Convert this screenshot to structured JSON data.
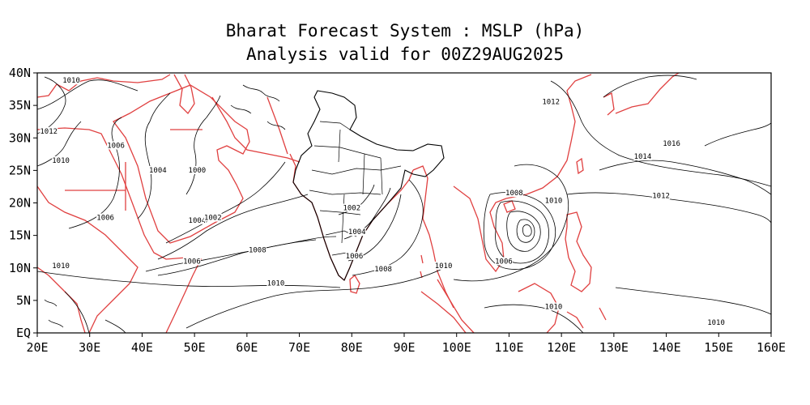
{
  "title": "Bharat Forecast System : MSLP (hPa)",
  "subtitle": "Analysis valid for 00Z29AUG2025",
  "map": {
    "variable": "MSLP",
    "units": "hPa",
    "lon_range": [
      20,
      160
    ],
    "lat_range": [
      0,
      40
    ],
    "lon_ticks": [
      "20E",
      "30E",
      "40E",
      "50E",
      "60E",
      "70E",
      "80E",
      "90E",
      "100E",
      "110E",
      "120E",
      "130E",
      "140E",
      "150E",
      "160E"
    ],
    "lat_ticks": [
      "EQ",
      "5N",
      "10N",
      "15N",
      "20N",
      "25N",
      "30N",
      "35N",
      "40N"
    ],
    "contour_color": "#000000",
    "coastline_color": "#e04040",
    "contour_labels": [
      {
        "text": "1010",
        "lon": 26.5,
        "lat": 38.6
      },
      {
        "text": "1012",
        "lon": 22.2,
        "lat": 30.8
      },
      {
        "text": "1010",
        "lon": 24.5,
        "lat": 26.3
      },
      {
        "text": "1006",
        "lon": 35.0,
        "lat": 28.6
      },
      {
        "text": "1004",
        "lon": 43.0,
        "lat": 24.8
      },
      {
        "text": "1000",
        "lon": 50.5,
        "lat": 24.8
      },
      {
        "text": "1006",
        "lon": 33.0,
        "lat": 17.5
      },
      {
        "text": "1004",
        "lon": 50.5,
        "lat": 17.1
      },
      {
        "text": "1002",
        "lon": 53.5,
        "lat": 17.5
      },
      {
        "text": "1006",
        "lon": 49.5,
        "lat": 10.8
      },
      {
        "text": "1008",
        "lon": 62.0,
        "lat": 12.5
      },
      {
        "text": "1010",
        "lon": 24.5,
        "lat": 10.1
      },
      {
        "text": "1010",
        "lon": 65.5,
        "lat": 7.4
      },
      {
        "text": "1002",
        "lon": 80.0,
        "lat": 19.0
      },
      {
        "text": "1004",
        "lon": 81.0,
        "lat": 15.3
      },
      {
        "text": "1006",
        "lon": 80.5,
        "lat": 11.6
      },
      {
        "text": "1008",
        "lon": 86.0,
        "lat": 9.6
      },
      {
        "text": "1010",
        "lon": 97.5,
        "lat": 10.1
      },
      {
        "text": "1006",
        "lon": 109.0,
        "lat": 10.8
      },
      {
        "text": "1008",
        "lon": 111.0,
        "lat": 21.3
      },
      {
        "text": "1010",
        "lon": 118.5,
        "lat": 20.1
      },
      {
        "text": "1012",
        "lon": 118.0,
        "lat": 35.3
      },
      {
        "text": "1016",
        "lon": 141.0,
        "lat": 28.9
      },
      {
        "text": "1014",
        "lon": 135.5,
        "lat": 26.9
      },
      {
        "text": "1012",
        "lon": 139.0,
        "lat": 20.9
      },
      {
        "text": "1010",
        "lon": 118.5,
        "lat": 3.8
      },
      {
        "text": "1010",
        "lon": 149.5,
        "lat": 1.4
      }
    ]
  }
}
